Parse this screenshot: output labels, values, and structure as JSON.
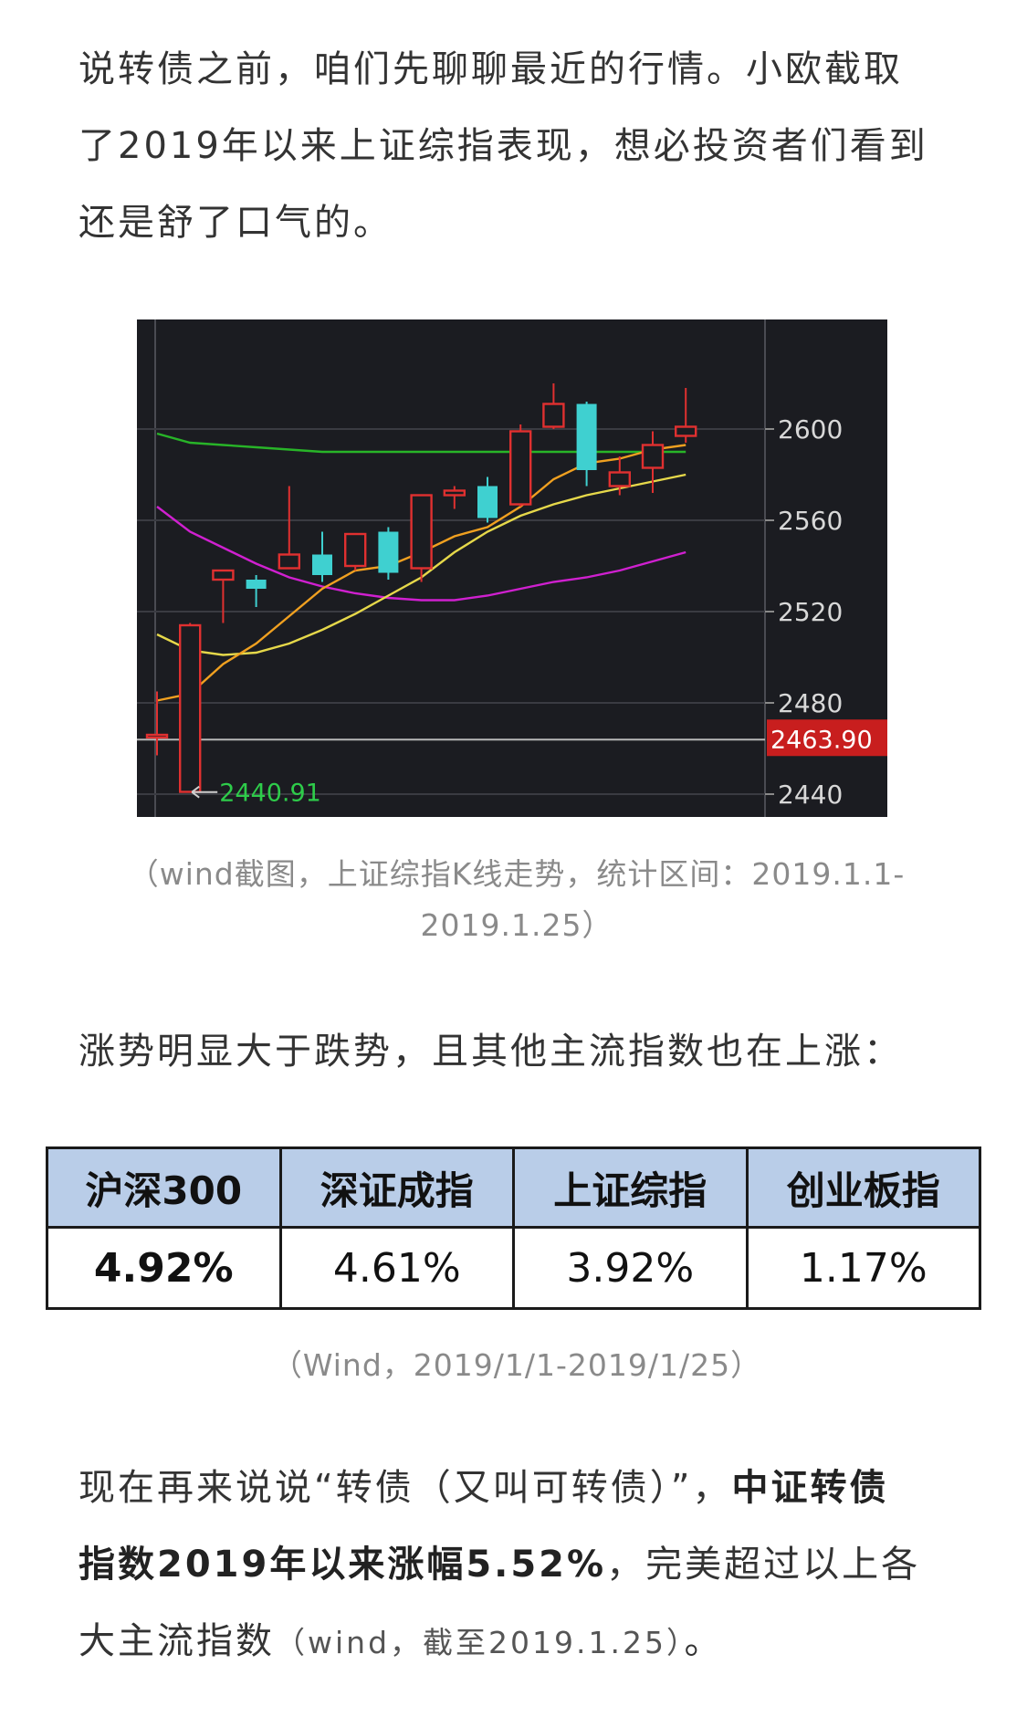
{
  "intro": {
    "line1": "说转债之前，咱们先聊聊最近的行情。小欧截取",
    "line2": "了2019年以来上证综指表现，想必投资者们看到",
    "line3": "还是舒了口气的。"
  },
  "chart_caption": {
    "line1": "（wind截图，上证综指K线走势，统计区间：2019.1.1-",
    "line2": "2019.1.25）"
  },
  "mid_text": "涨势明显大于跌势，且其他主流指数也在上涨：",
  "table": {
    "headers": [
      "沪深300",
      "深证成指",
      "上证综指",
      "创业板指"
    ],
    "values": [
      "4.92%",
      "4.61%",
      "3.92%",
      "1.17%"
    ]
  },
  "table_caption": "（Wind，2019/1/1-2019/1/25）",
  "outro": {
    "l1_normal": "现在再来说说“转债（又叫可转债）”，",
    "l1_bold": "中证转债",
    "l2_bold": "指数2019年以来涨幅5.52%",
    "l2_normal": "，完美超过以上各",
    "l3_normal": "大主流指数",
    "l3_small": "（wind，截至2019.1.25）",
    "l3_end": "。"
  },
  "chart_data": {
    "type": "candlestick",
    "ylim": [
      2434,
      2644
    ],
    "y_ticks": [
      2440,
      2480,
      2520,
      2560,
      2600
    ],
    "current_price_label": "2463.90",
    "current_price": 2463.9,
    "low_marker_label": "2440.91",
    "low_marker": 2440.91,
    "colors": {
      "up": "#e03030",
      "down": "#3fd0d0",
      "ma_orange": "#f0a020",
      "ma_yellow": "#e6d84a",
      "ma_green": "#28b428",
      "ma_magenta": "#d020d0",
      "price_tag_bg": "#c81e1e",
      "low_label": "#2ecc4a",
      "axis_text": "#d8d8d8"
    },
    "candles": [
      {
        "o": 2465,
        "h": 2485,
        "l": 2457,
        "c": 2466
      },
      {
        "o": 2441,
        "h": 2515,
        "l": 2440.91,
        "c": 2514
      },
      {
        "o": 2534,
        "h": 2538,
        "l": 2515,
        "c": 2538
      },
      {
        "o": 2534,
        "h": 2536,
        "l": 2522,
        "c": 2530
      },
      {
        "o": 2539,
        "h": 2575,
        "l": 2539,
        "c": 2545
      },
      {
        "o": 2545,
        "h": 2555,
        "l": 2533,
        "c": 2536
      },
      {
        "o": 2540,
        "h": 2553,
        "l": 2538,
        "c": 2554
      },
      {
        "o": 2555,
        "h": 2557,
        "l": 2534,
        "c": 2537
      },
      {
        "o": 2539,
        "h": 2571,
        "l": 2533,
        "c": 2571
      },
      {
        "o": 2571,
        "h": 2575,
        "l": 2565,
        "c": 2573
      },
      {
        "o": 2575,
        "h": 2579,
        "l": 2559,
        "c": 2561
      },
      {
        "o": 2567,
        "h": 2602,
        "l": 2566,
        "c": 2599
      },
      {
        "o": 2601,
        "h": 2620,
        "l": 2600,
        "c": 2611
      },
      {
        "o": 2611,
        "h": 2612,
        "l": 2575,
        "c": 2582
      },
      {
        "o": 2575,
        "h": 2588,
        "l": 2571,
        "c": 2581
      },
      {
        "o": 2583,
        "h": 2599,
        "l": 2572,
        "c": 2593
      },
      {
        "o": 2597,
        "h": 2618,
        "l": 2594,
        "c": 2601
      }
    ],
    "ma_orange": [
      2481,
      2484,
      2497,
      2506,
      2518,
      2530,
      2538,
      2540,
      2546,
      2553,
      2557,
      2566,
      2578,
      2585,
      2587,
      2591,
      2593
    ],
    "ma_yellow": [
      2510,
      2503,
      2501,
      2502,
      2506,
      2512,
      2519,
      2527,
      2535,
      2546,
      2555,
      2562,
      2567,
      2571,
      2574,
      2577,
      2580
    ],
    "ma_green": [
      2598,
      2594,
      2593,
      2592,
      2591,
      2590,
      2590,
      2590,
      2590,
      2590,
      2590,
      2590,
      2590,
      2590,
      2590,
      2590,
      2590
    ],
    "ma_magenta": [
      2566,
      2555,
      2548,
      2541,
      2535,
      2531,
      2528,
      2526,
      2525,
      2525,
      2527,
      2530,
      2533,
      2535,
      2538,
      2542,
      2546
    ]
  }
}
